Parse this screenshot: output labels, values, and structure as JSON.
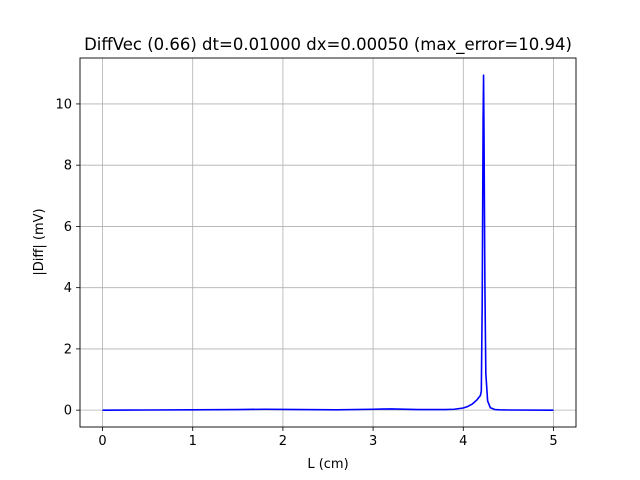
{
  "chart_data": {
    "type": "line",
    "title": "DiffVec (0.66) dt=0.01000 dx=0.00050 (max_error=10.94)",
    "xlabel": "L (cm)",
    "ylabel": "|Diff| (mV)",
    "xlim": [
      -0.25,
      5.25
    ],
    "ylim": [
      -0.55,
      11.5
    ],
    "xticks": [
      0,
      1,
      2,
      3,
      4,
      5
    ],
    "yticks": [
      0,
      2,
      4,
      6,
      8,
      10
    ],
    "grid": true,
    "series": [
      {
        "color": "#0000ff",
        "x": [
          0,
          0.5,
          1.0,
          1.5,
          1.8,
          2.2,
          2.6,
          3.0,
          3.2,
          3.5,
          3.8,
          3.9,
          4.0,
          4.05,
          4.1,
          4.15,
          4.19,
          4.2,
          4.21,
          4.22,
          4.225,
          4.23,
          4.24,
          4.25,
          4.27,
          4.3,
          4.35,
          4.4,
          4.5,
          5.0
        ],
        "y": [
          0,
          0.005,
          0.01,
          0.02,
          0.03,
          0.02,
          0.01,
          0.03,
          0.04,
          0.02,
          0.02,
          0.03,
          0.07,
          0.12,
          0.2,
          0.33,
          0.48,
          0.62,
          3.5,
          9.5,
          10.94,
          9.0,
          4.0,
          1.2,
          0.3,
          0.08,
          0.02,
          0.01,
          0.005,
          0
        ]
      }
    ]
  }
}
